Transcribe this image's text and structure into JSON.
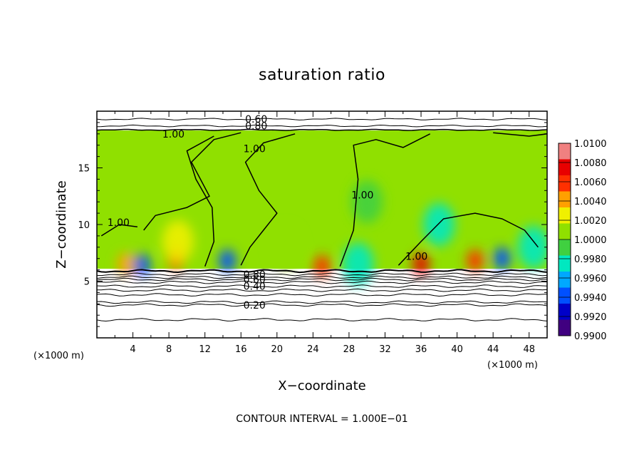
{
  "chart_data": {
    "type": "heatmap",
    "title": "saturation ratio",
    "xlabel": "X−coordinate",
    "ylabel": "Z−coordinate",
    "x_unit_left": "(×1000 m)",
    "x_unit_right": "(×1000 m)",
    "xlim": [
      0,
      50
    ],
    "ylim": [
      0,
      20
    ],
    "x_ticks": [
      4,
      8,
      12,
      16,
      20,
      24,
      28,
      32,
      36,
      40,
      44,
      48
    ],
    "x_tick_labels": [
      "4",
      "8",
      "12",
      "16",
      "20",
      "24",
      "28",
      "32",
      "36",
      "40",
      "44",
      "48"
    ],
    "y_ticks": [
      5,
      10,
      15
    ],
    "y_tick_labels": [
      "5",
      "10",
      "15"
    ],
    "colorbar": {
      "min": 0.99,
      "max": 1.01,
      "levels": [
        0.99,
        0.992,
        0.994,
        0.996,
        0.998,
        1.0,
        1.002,
        1.004,
        1.006,
        1.008,
        1.01
      ],
      "labels": [
        "0.9900",
        "0.9920",
        "0.9940",
        "0.9960",
        "0.9980",
        "1.0000",
        "1.0020",
        "1.0040",
        "1.0060",
        "1.0080",
        "1.0100"
      ],
      "colors": [
        "#400080",
        "#0000c8",
        "#0050ff",
        "#00a8ff",
        "#00e8c0",
        "#40d040",
        "#90e000",
        "#f0f000",
        "#ffa000",
        "#ff3000",
        "#e80000",
        "#f08080"
      ]
    },
    "filled_region": {
      "x_range": [
        0,
        50
      ],
      "z_range": [
        6.1,
        18.3
      ],
      "background_value": 1.0005
    },
    "features": [
      {
        "x": 8.8,
        "z": 7.0,
        "value": 1.0068
      },
      {
        "x": 9.0,
        "z": 8.5,
        "value": 1.003
      },
      {
        "x": 3.2,
        "z": 6.5,
        "value": 1.005
      },
      {
        "x": 14.5,
        "z": 6.8,
        "value": 0.9945
      },
      {
        "x": 21.0,
        "z": 8.0,
        "value": 1.0015
      },
      {
        "x": 25.0,
        "z": 6.3,
        "value": 1.0065
      },
      {
        "x": 29.0,
        "z": 6.5,
        "value": 0.997
      },
      {
        "x": 30.0,
        "z": 12.0,
        "value": 0.9985
      },
      {
        "x": 36.0,
        "z": 6.5,
        "value": 1.0075
      },
      {
        "x": 38.0,
        "z": 10.0,
        "value": 0.998
      },
      {
        "x": 42.0,
        "z": 6.8,
        "value": 1.0065
      },
      {
        "x": 45.0,
        "z": 7.0,
        "value": 0.9945
      },
      {
        "x": 48.5,
        "z": 8.0,
        "value": 0.9975
      },
      {
        "x": 5.0,
        "z": 6.4,
        "value": 0.9935
      }
    ],
    "contours_upper": [
      {
        "level": 0.6,
        "z": 19.3,
        "label": "0.60",
        "label_x": 17.7
      },
      {
        "level": 0.8,
        "z": 18.7,
        "label": "0.80",
        "label_x": 17.7
      }
    ],
    "contours_lower": [
      {
        "level": 0.8,
        "z": 5.6,
        "label": "0.80",
        "label_x": 17.5
      },
      {
        "level": 0.6,
        "z": 5.15,
        "label": "0.60",
        "label_x": 17.5
      },
      {
        "level": 0.4,
        "z": 4.55,
        "label": "0.40",
        "label_x": 17.5
      },
      {
        "level": 0.2,
        "z": 2.9,
        "label": "0.20",
        "label_x": 17.5
      }
    ],
    "contour_lines_lower_z": [
      5.9,
      5.6,
      5.35,
      5.15,
      4.9,
      4.55,
      4.2,
      3.8,
      3.15,
      2.9,
      1.6
    ],
    "contours_one": [
      {
        "label": "1.00",
        "label_x": 8.5,
        "label_z": 18.0
      },
      {
        "label": "1.00",
        "label_x": 17.5,
        "label_z": 16.7
      },
      {
        "label": "1.00",
        "label_x": 29.5,
        "label_z": 12.6
      },
      {
        "label": "1.00",
        "label_x": 2.4,
        "label_z": 10.2
      },
      {
        "label": "1.00",
        "label_x": 35.5,
        "label_z": 7.2
      }
    ],
    "footer": "CONTOUR INTERVAL =  1.000E−01"
  }
}
